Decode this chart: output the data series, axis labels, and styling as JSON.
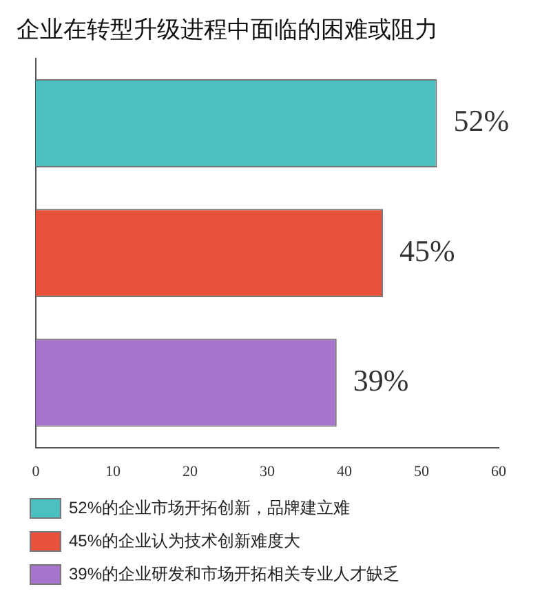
{
  "chart_data": {
    "type": "bar",
    "orientation": "horizontal",
    "title": "企业在转型升级进程中面临的困难或阻力",
    "categories": [
      null,
      null,
      null
    ],
    "series": [
      {
        "name": "52%的企业市场开拓创新，品牌建立难",
        "color": "#4cbfc0",
        "values": [
          52,
          null,
          null
        ],
        "value_labels": [
          "52%",
          null,
          null
        ]
      },
      {
        "name": "45%的企业认为技术创新难度大",
        "color": "#e8513c",
        "values": [
          null,
          45,
          null
        ],
        "value_labels": [
          null,
          "45%",
          null
        ]
      },
      {
        "name": "39%的企业研发和市场开拓相关专业人才缺乏",
        "color": "#a774cc",
        "values": [
          null,
          null,
          39
        ],
        "value_labels": [
          null,
          null,
          "39%"
        ]
      }
    ],
    "xlim": [
      0,
      60
    ],
    "xticks": [
      0,
      10,
      20,
      30,
      40,
      50,
      60
    ],
    "grid": false,
    "legend": "bottom"
  }
}
